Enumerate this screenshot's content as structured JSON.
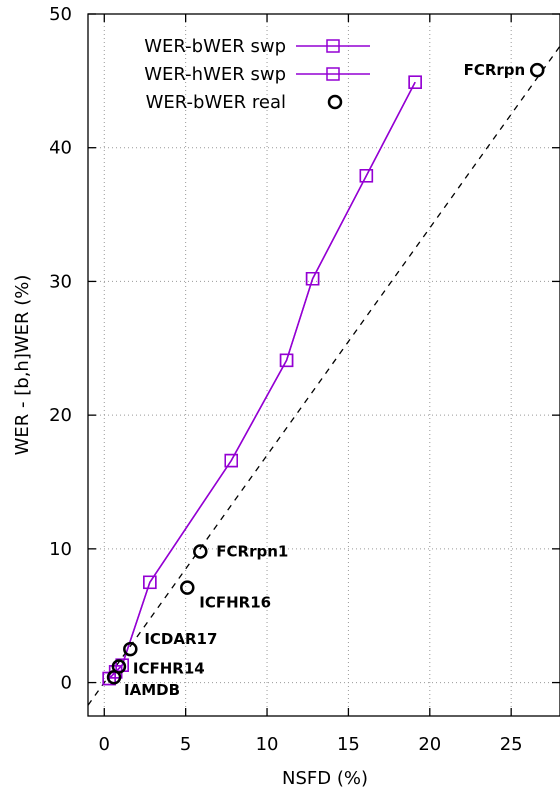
{
  "chart_data": {
    "type": "scatter",
    "xlabel": "NSFD (%)",
    "ylabel": "WER - [b,h]WER (%)",
    "xlim": [
      -1,
      28
    ],
    "ylim": [
      -2.5,
      50
    ],
    "xticks": [
      0,
      5,
      10,
      15,
      20,
      25
    ],
    "yticks": [
      0,
      10,
      20,
      30,
      40,
      50
    ],
    "grid": true,
    "legend_position": "top-left",
    "reference_line": {
      "style": "dashed",
      "color": "#000000",
      "slope": 1.7,
      "intercept": 0
    },
    "series": [
      {
        "name": "WER-bWER swp",
        "style": "line-square",
        "color": "#9400d3",
        "x": [
          0.3,
          0.7,
          1.1,
          2.8,
          7.8,
          11.2,
          12.8,
          16.1,
          19.1
        ],
        "y": [
          0.3,
          0.8,
          1.3,
          7.5,
          16.6,
          24.1,
          30.2,
          37.9,
          44.9
        ]
      },
      {
        "name": "WER-hWER swp",
        "style": "line-square",
        "color": "#9400d3",
        "x": [
          0.3,
          0.7,
          1.1,
          2.8,
          7.8,
          11.2,
          12.8,
          16.1,
          19.1
        ],
        "y": [
          0.3,
          0.8,
          1.3,
          7.5,
          16.6,
          24.1,
          30.2,
          37.9,
          44.9
        ]
      },
      {
        "name": "WER-bWER real",
        "style": "circle",
        "color": "#000000",
        "x": [
          0.6,
          0.9,
          1.6,
          5.1,
          5.9,
          26.6
        ],
        "y": [
          0.4,
          1.2,
          2.5,
          7.1,
          9.8,
          45.8
        ],
        "labels": [
          "IAMDB",
          "ICFHR14",
          "ICDAR17",
          "ICFHR16",
          "FCRrpn1",
          "FCRrpn"
        ]
      }
    ]
  }
}
